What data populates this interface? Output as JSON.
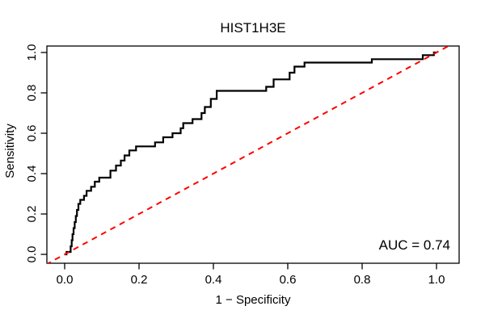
{
  "figure": {
    "background": "#FFFFFF"
  },
  "chart_data": {
    "type": "line",
    "subtype": "roc-curve",
    "title": "HIST1H3E",
    "xlabel": "1 − Specificity",
    "ylabel": "Sensitivity",
    "xlim": [
      0,
      1
    ],
    "ylim": [
      0,
      1
    ],
    "grid": false,
    "legend": "none",
    "x_tick_labels": [
      "0.0",
      "0.2",
      "0.4",
      "0.6",
      "0.8",
      "1.0"
    ],
    "y_tick_labels": [
      "0.0",
      "0.2",
      "0.4",
      "0.6",
      "0.8",
      "1.0"
    ],
    "annotations": [
      {
        "id": "auc",
        "text": "AUC = 0.74",
        "position": "bottom-right"
      }
    ],
    "series": [
      {
        "name": "ROC curve",
        "style": "step",
        "color": "#000000",
        "width": 2.2,
        "dash": null,
        "points": [
          [
            0.0,
            0.0
          ],
          [
            0.005,
            0.0
          ],
          [
            0.005,
            0.012
          ],
          [
            0.016,
            0.012
          ],
          [
            0.016,
            0.04
          ],
          [
            0.019,
            0.04
          ],
          [
            0.019,
            0.07
          ],
          [
            0.021,
            0.07
          ],
          [
            0.021,
            0.1
          ],
          [
            0.024,
            0.1
          ],
          [
            0.024,
            0.13
          ],
          [
            0.027,
            0.13
          ],
          [
            0.027,
            0.16
          ],
          [
            0.03,
            0.16
          ],
          [
            0.03,
            0.19
          ],
          [
            0.033,
            0.19
          ],
          [
            0.033,
            0.22
          ],
          [
            0.037,
            0.22
          ],
          [
            0.037,
            0.25
          ],
          [
            0.042,
            0.25
          ],
          [
            0.042,
            0.27
          ],
          [
            0.052,
            0.27
          ],
          [
            0.052,
            0.29
          ],
          [
            0.059,
            0.29
          ],
          [
            0.059,
            0.315
          ],
          [
            0.071,
            0.315
          ],
          [
            0.071,
            0.335
          ],
          [
            0.081,
            0.335
          ],
          [
            0.081,
            0.36
          ],
          [
            0.093,
            0.36
          ],
          [
            0.093,
            0.38
          ],
          [
            0.123,
            0.38
          ],
          [
            0.123,
            0.415
          ],
          [
            0.138,
            0.415
          ],
          [
            0.138,
            0.44
          ],
          [
            0.151,
            0.44
          ],
          [
            0.151,
            0.465
          ],
          [
            0.161,
            0.465
          ],
          [
            0.161,
            0.49
          ],
          [
            0.174,
            0.49
          ],
          [
            0.174,
            0.515
          ],
          [
            0.192,
            0.515
          ],
          [
            0.192,
            0.535
          ],
          [
            0.243,
            0.535
          ],
          [
            0.243,
            0.555
          ],
          [
            0.265,
            0.555
          ],
          [
            0.265,
            0.58
          ],
          [
            0.29,
            0.58
          ],
          [
            0.29,
            0.6
          ],
          [
            0.312,
            0.6
          ],
          [
            0.312,
            0.625
          ],
          [
            0.319,
            0.625
          ],
          [
            0.319,
            0.65
          ],
          [
            0.344,
            0.65
          ],
          [
            0.344,
            0.67
          ],
          [
            0.368,
            0.67
          ],
          [
            0.368,
            0.7
          ],
          [
            0.377,
            0.7
          ],
          [
            0.377,
            0.73
          ],
          [
            0.393,
            0.73
          ],
          [
            0.393,
            0.77
          ],
          [
            0.409,
            0.77
          ],
          [
            0.409,
            0.81
          ],
          [
            0.542,
            0.81
          ],
          [
            0.542,
            0.83
          ],
          [
            0.562,
            0.83
          ],
          [
            0.562,
            0.867
          ],
          [
            0.605,
            0.867
          ],
          [
            0.605,
            0.9
          ],
          [
            0.618,
            0.9
          ],
          [
            0.618,
            0.93
          ],
          [
            0.645,
            0.93
          ],
          [
            0.645,
            0.95
          ],
          [
            0.826,
            0.95
          ],
          [
            0.826,
            0.967
          ],
          [
            0.963,
            0.967
          ],
          [
            0.963,
            0.987
          ],
          [
            0.993,
            0.987
          ],
          [
            0.993,
            1.0
          ],
          [
            1.0,
            1.0
          ]
        ]
      },
      {
        "name": "chance diagonal",
        "style": "dashed",
        "color": "#FF0000",
        "width": 2,
        "dash": "7,6",
        "points": [
          [
            0,
            0
          ],
          [
            1,
            1
          ]
        ]
      }
    ]
  }
}
